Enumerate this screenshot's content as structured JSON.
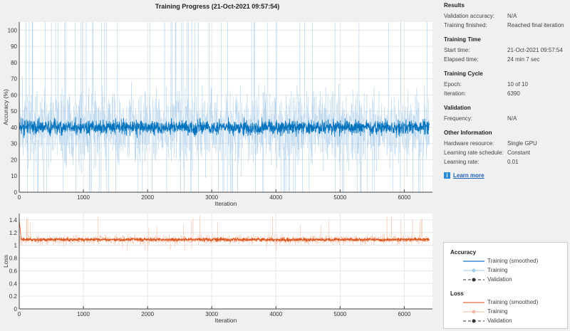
{
  "title": "Training Progress (21-Oct-2021 09:57:54)",
  "info": {
    "sections": [
      {
        "title": "Results",
        "rows": [
          [
            "Validation accuracy:",
            "N/A"
          ],
          [
            "Training finished:",
            "Reached final iteration"
          ]
        ]
      },
      {
        "title": "Training Time",
        "rows": [
          [
            "Start time:",
            "21-Oct-2021 09:57:54"
          ],
          [
            "Elapsed time:",
            "24 min 7 sec"
          ]
        ]
      },
      {
        "title": "Training Cycle",
        "rows": [
          [
            "Epoch:",
            "10 of 10"
          ],
          [
            "Iteration:",
            "6390"
          ]
        ]
      },
      {
        "title": "Validation",
        "rows": [
          [
            "Frequency:",
            "N/A"
          ]
        ]
      },
      {
        "title": "Other Information",
        "rows": [
          [
            "Hardware resource:",
            "Single GPU"
          ],
          [
            "Learning rate schedule:",
            "Constant"
          ],
          [
            "Learning rate:",
            "0.01"
          ]
        ]
      }
    ],
    "learn_more": "Learn more"
  },
  "legend": {
    "accuracy_title": "Accuracy",
    "loss_title": "Loss",
    "smoothed": "Training (smoothed)",
    "training": "Training",
    "validation": "Validation"
  },
  "colors": {
    "acc": "#0072bd",
    "acc_raw": "#a6cbe8",
    "loss": "#d95319",
    "loss_raw": "#f1b9a0",
    "val": "#333333"
  },
  "chart_data": [
    {
      "type": "line",
      "name": "accuracy",
      "xlabel": "Iteration",
      "ylabel": "Accuracy (%)",
      "xlim": [
        0,
        6440
      ],
      "ylim": [
        0,
        105
      ],
      "xticks": [
        0,
        1000,
        2000,
        3000,
        4000,
        5000,
        6000
      ],
      "yticks": [
        0,
        10,
        20,
        30,
        40,
        50,
        60,
        70,
        80,
        90,
        100
      ],
      "series": [
        {
          "name": "Training (smoothed)",
          "mean": 40,
          "spread": 5
        },
        {
          "name": "Training",
          "mean": 40,
          "min": 0,
          "max": 105
        }
      ],
      "iterations": 6390,
      "grid": true
    },
    {
      "type": "line",
      "name": "loss",
      "xlabel": "Iteration",
      "ylabel": "Loss",
      "xlim": [
        0,
        6440
      ],
      "ylim": [
        0,
        1.5
      ],
      "xticks": [
        0,
        1000,
        2000,
        3000,
        4000,
        5000,
        6000
      ],
      "yticks": [
        0,
        0.2,
        0.4,
        0.6,
        0.8,
        1,
        1.2,
        1.4
      ],
      "series": [
        {
          "name": "Training (smoothed)",
          "mean": 1.09,
          "spread": 0.03
        },
        {
          "name": "Training",
          "mean": 1.09,
          "min": 0.8,
          "max": 1.5
        }
      ],
      "iterations": 6390,
      "grid": true
    }
  ]
}
